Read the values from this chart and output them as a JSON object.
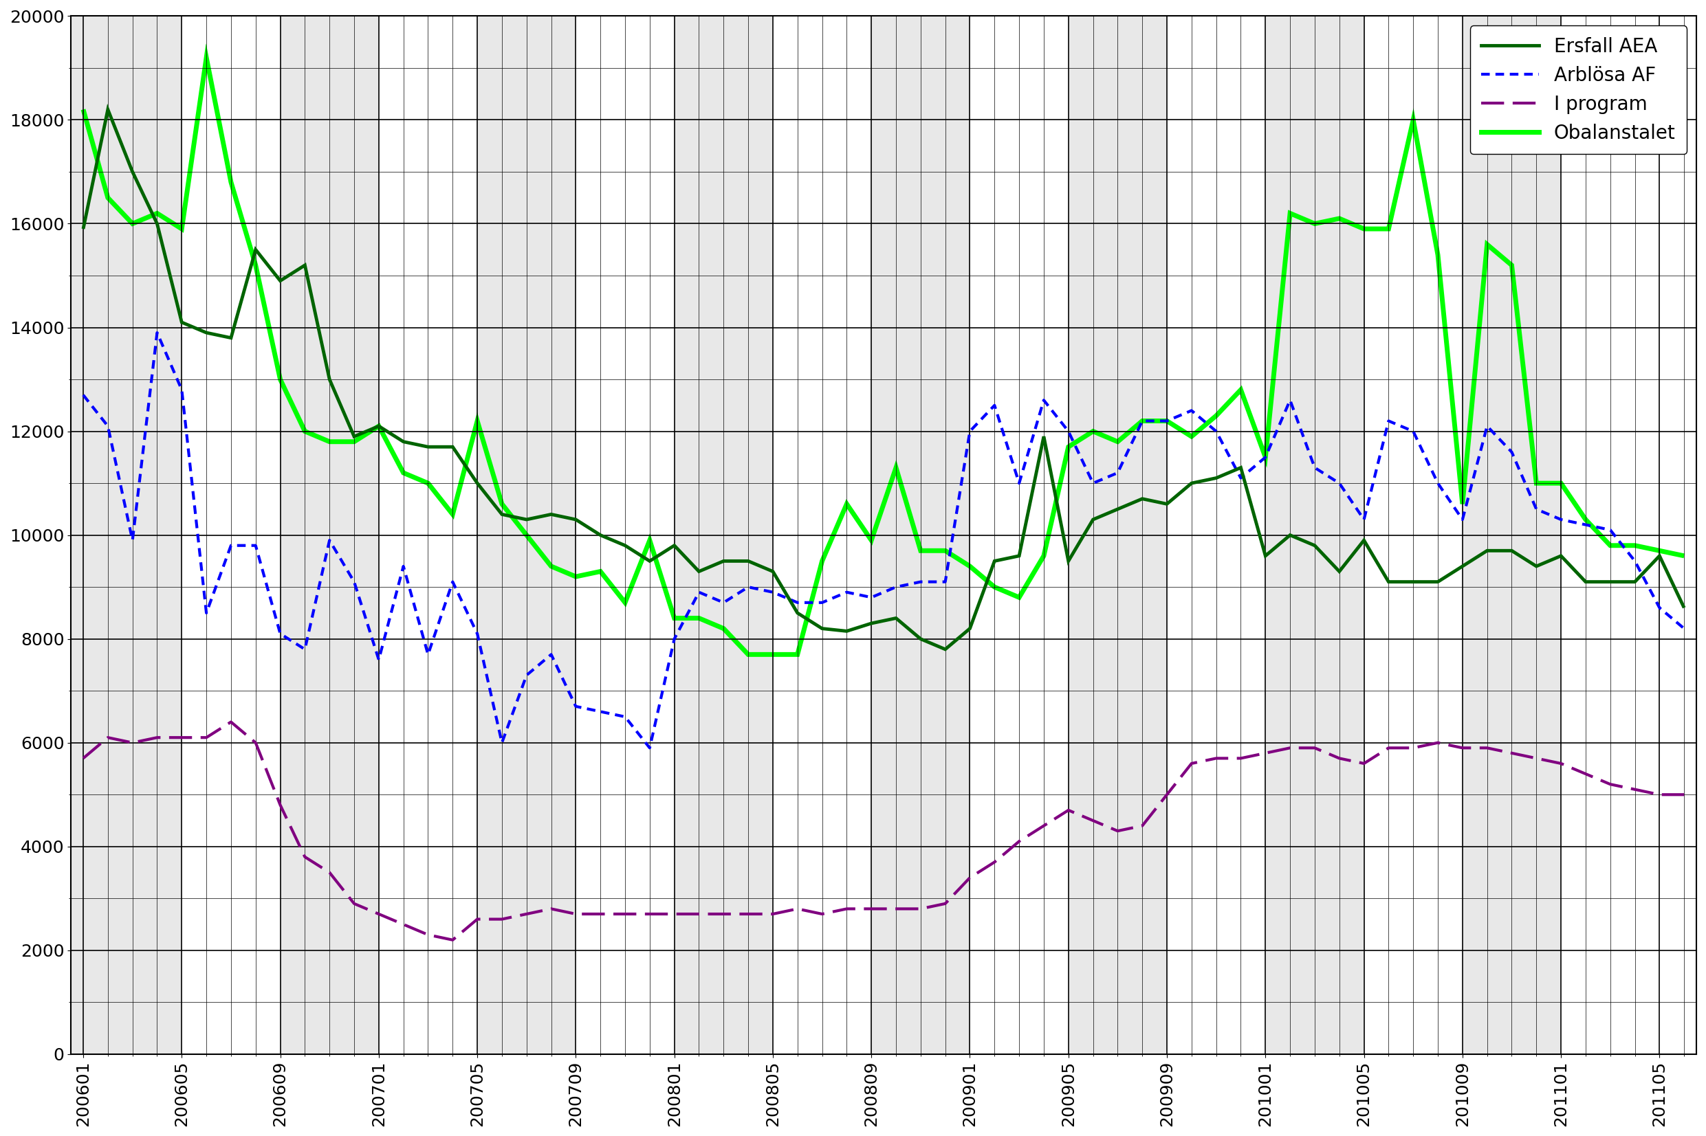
{
  "background_color": "#ffffff",
  "plot_bg_color": "#f0f0f0",
  "grid_color": "#000000",
  "ylim": [
    0,
    20000
  ],
  "yticks": [
    0,
    2000,
    4000,
    6000,
    8000,
    10000,
    12000,
    14000,
    16000,
    18000,
    20000
  ],
  "legend_labels": [
    "Ersfall AEA",
    "Arblösa AF",
    "I program",
    "Obalanstalet"
  ],
  "xtick_labels": [
    "200601",
    "200605",
    "200609",
    "200701",
    "200705",
    "200709",
    "200801",
    "200805",
    "200809",
    "200901",
    "200905",
    "200909",
    "201001",
    "201005",
    "201009",
    "201101",
    "201105"
  ],
  "xtick_positions": [
    0,
    4,
    8,
    12,
    16,
    20,
    24,
    28,
    32,
    36,
    40,
    44,
    48,
    52,
    56,
    60,
    64
  ],
  "ersfall_aea": [
    15900,
    18200,
    17000,
    16000,
    14100,
    13900,
    13800,
    15500,
    14900,
    15200,
    13000,
    11900,
    12100,
    11800,
    11700,
    11700,
    11000,
    10400,
    10300,
    10400,
    10300,
    10000,
    9800,
    9500,
    9800,
    9300,
    9500,
    9500,
    9300,
    8500,
    8200,
    8150,
    8300,
    8400,
    8000,
    7800,
    8200,
    9500,
    9600,
    11900,
    9500,
    10300,
    10500,
    10700,
    10600,
    11000,
    11100,
    11300,
    9600,
    10000,
    9800,
    9300,
    9900,
    9100,
    9100,
    9100,
    9400,
    9700,
    9700,
    9400,
    9600,
    9100,
    9100,
    9100,
    9600,
    8600
  ],
  "arblosa_af": [
    12700,
    12100,
    9900,
    13900,
    12800,
    8500,
    9800,
    9800,
    8100,
    7800,
    9900,
    9100,
    7600,
    9400,
    7700,
    9100,
    8100,
    6000,
    7300,
    7700,
    6700,
    6600,
    6500,
    5900,
    8000,
    8900,
    8700,
    9000,
    8900,
    8700,
    8700,
    8900,
    8800,
    9000,
    9100,
    9100,
    12000,
    12500,
    11000,
    12600,
    12000,
    11000,
    11200,
    12200,
    12200,
    12400,
    12000,
    11100,
    11500,
    12600,
    11300,
    11000,
    10300,
    12200,
    12000,
    11000,
    10300,
    12100,
    11600,
    10500,
    10300,
    10200,
    10100,
    9500,
    8600,
    8200
  ],
  "i_program": [
    5700,
    6100,
    6000,
    6100,
    6100,
    6100,
    6400,
    6000,
    4800,
    3800,
    3500,
    2900,
    2700,
    2500,
    2300,
    2200,
    2600,
    2600,
    2700,
    2800,
    2700,
    2700,
    2700,
    2700,
    2700,
    2700,
    2700,
    2700,
    2700,
    2800,
    2700,
    2800,
    2800,
    2800,
    2800,
    2900,
    3400,
    3700,
    4100,
    4400,
    4700,
    4500,
    4300,
    4400,
    5000,
    5600,
    5700,
    5700,
    5800,
    5900,
    5900,
    5700,
    5600,
    5900,
    5900,
    6000,
    5900,
    5900,
    5800,
    5700,
    5600,
    5400,
    5200,
    5100,
    5000,
    5000
  ],
  "obalanstalet": [
    18200,
    16500,
    16000,
    16200,
    15900,
    19200,
    16800,
    15200,
    13000,
    12000,
    11800,
    11800,
    12100,
    11200,
    11000,
    10400,
    12200,
    10600,
    10000,
    9400,
    9200,
    9300,
    8700,
    9900,
    8400,
    8400,
    8200,
    7700,
    7700,
    7700,
    9500,
    10600,
    9900,
    11300,
    9700,
    9700,
    9400,
    9000,
    8800,
    9600,
    11700,
    12000,
    11800,
    12200,
    12200,
    11900,
    12300,
    12800,
    11500,
    16200,
    16000,
    16100,
    15900,
    15900,
    18000,
    15400,
    10600,
    15600,
    15200,
    11000,
    11000,
    10300,
    9800,
    9800,
    9700,
    9600
  ],
  "ersfall_color": "#006400",
  "arblosa_color": "#0000ff",
  "iprogram_color": "#800080",
  "obalans_color": "#00ff00",
  "ersfall_lw": 3.5,
  "arblosa_lw": 3.0,
  "iprogram_lw": 3.0,
  "obalans_lw": 5.0,
  "tick_fontsize": 18,
  "legend_fontsize": 20
}
